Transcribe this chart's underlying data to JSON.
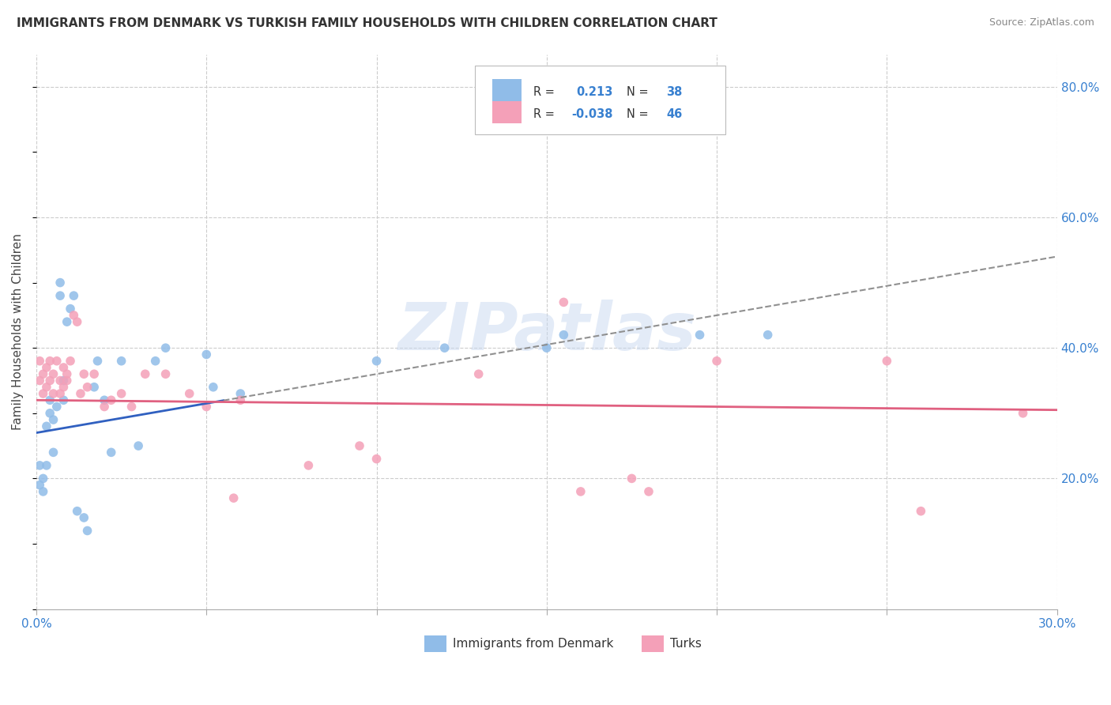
{
  "title": "IMMIGRANTS FROM DENMARK VS TURKISH FAMILY HOUSEHOLDS WITH CHILDREN CORRELATION CHART",
  "source": "Source: ZipAtlas.com",
  "ylabel": "Family Households with Children",
  "xlim": [
    0.0,
    0.3
  ],
  "ylim": [
    0.0,
    0.85
  ],
  "xticks": [
    0.0,
    0.05,
    0.1,
    0.15,
    0.2,
    0.25,
    0.3
  ],
  "ytick_positions": [
    0.2,
    0.4,
    0.6,
    0.8
  ],
  "ytick_labels": [
    "20.0%",
    "40.0%",
    "60.0%",
    "80.0%"
  ],
  "series1_color": "#90bce8",
  "series2_color": "#f4a0b8",
  "line1_color": "#3060c0",
  "line1_dashed_color": "#909090",
  "line2_color": "#e06080",
  "watermark": "ZIPatlas",
  "watermark_color": "#c8d8f0",
  "background_color": "#ffffff",
  "grid_color": "#cccccc",
  "blue_text_color": "#3880d0",
  "axis_text_color": "#3880d0",
  "title_color": "#333333",
  "source_color": "#888888",
  "denmark_points_x": [
    0.001,
    0.001,
    0.002,
    0.002,
    0.003,
    0.003,
    0.004,
    0.004,
    0.005,
    0.005,
    0.006,
    0.007,
    0.007,
    0.008,
    0.008,
    0.009,
    0.01,
    0.011,
    0.012,
    0.014,
    0.015,
    0.017,
    0.018,
    0.02,
    0.022,
    0.025,
    0.03,
    0.035,
    0.038,
    0.05,
    0.052,
    0.06,
    0.1,
    0.12,
    0.15,
    0.155,
    0.195,
    0.215
  ],
  "denmark_points_y": [
    0.19,
    0.22,
    0.2,
    0.18,
    0.28,
    0.22,
    0.3,
    0.32,
    0.29,
    0.24,
    0.31,
    0.48,
    0.5,
    0.35,
    0.32,
    0.44,
    0.46,
    0.48,
    0.15,
    0.14,
    0.12,
    0.34,
    0.38,
    0.32,
    0.24,
    0.38,
    0.25,
    0.38,
    0.4,
    0.39,
    0.34,
    0.33,
    0.38,
    0.4,
    0.4,
    0.42,
    0.42,
    0.42
  ],
  "turks_points_x": [
    0.001,
    0.001,
    0.002,
    0.002,
    0.003,
    0.003,
    0.004,
    0.004,
    0.005,
    0.005,
    0.006,
    0.007,
    0.007,
    0.008,
    0.008,
    0.009,
    0.009,
    0.01,
    0.011,
    0.012,
    0.013,
    0.014,
    0.015,
    0.017,
    0.02,
    0.022,
    0.025,
    0.028,
    0.032,
    0.038,
    0.045,
    0.05,
    0.06,
    0.08,
    0.1,
    0.13,
    0.155,
    0.175,
    0.2,
    0.25,
    0.26,
    0.058,
    0.095,
    0.16,
    0.18,
    0.29
  ],
  "turks_points_y": [
    0.35,
    0.38,
    0.33,
    0.36,
    0.34,
    0.37,
    0.35,
    0.38,
    0.33,
    0.36,
    0.38,
    0.35,
    0.33,
    0.37,
    0.34,
    0.36,
    0.35,
    0.38,
    0.45,
    0.44,
    0.33,
    0.36,
    0.34,
    0.36,
    0.31,
    0.32,
    0.33,
    0.31,
    0.36,
    0.36,
    0.33,
    0.31,
    0.32,
    0.22,
    0.23,
    0.36,
    0.47,
    0.2,
    0.38,
    0.38,
    0.15,
    0.17,
    0.25,
    0.18,
    0.18,
    0.3
  ],
  "line1_intercept": 0.27,
  "line1_slope": 0.9,
  "line2_intercept": 0.32,
  "line2_slope": -0.05,
  "line1_solid_end": 0.055
}
